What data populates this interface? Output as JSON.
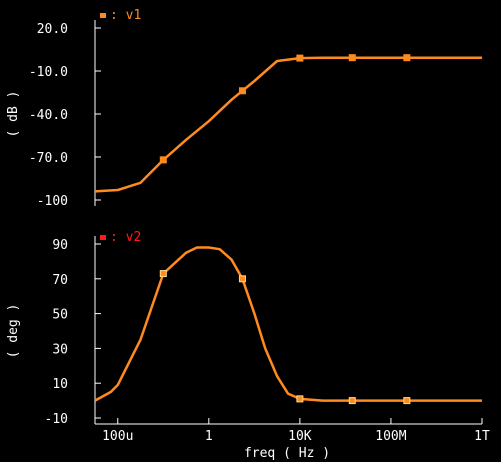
{
  "chart_data": [
    {
      "type": "line",
      "name": "magnitude-plot",
      "ylabel": "( dB )",
      "ylim": [
        -100,
        20
      ],
      "yticks": [
        "20.0",
        "-10.0",
        "-40.0",
        "-70.0",
        "-100"
      ],
      "ytick_values": [
        20,
        -10,
        -40,
        -70,
        -100
      ],
      "x_scale": "log",
      "series": [
        {
          "name": "v1",
          "color": "#ff8a1f",
          "marker_color": "#ff8a1f",
          "x": [
            1e-05,
            0.0001,
            0.001,
            0.01,
            0.1,
            1,
            10,
            100,
            1000,
            10000,
            100000,
            1000000,
            10000000,
            100000000,
            1000000000,
            10000000000,
            100000000000,
            1000000000000
          ],
          "y": [
            -94,
            -93,
            -88,
            -72,
            -58,
            -45,
            -30,
            -17,
            -3,
            -1,
            -0.7,
            -0.7,
            -0.7,
            -0.7,
            -0.7,
            -0.7,
            -0.7,
            -0.7
          ],
          "markers_x": [
            0.01,
            30,
            10000,
            2000000,
            500000000
          ]
        }
      ]
    },
    {
      "type": "line",
      "name": "phase-plot",
      "ylabel": "( deg )",
      "ylim": [
        -10,
        90
      ],
      "yticks": [
        "90",
        "70",
        "50",
        "30",
        "10",
        "-10"
      ],
      "ytick_values": [
        90,
        70,
        50,
        30,
        10,
        -10
      ],
      "x_scale": "log",
      "xlabel": "freq ( Hz )",
      "xticks": [
        "100u",
        "1",
        "10K",
        "100M",
        "1T"
      ],
      "xtick_values": [
        0.0001,
        1,
        10000,
        100000000,
        1000000000000
      ],
      "series": [
        {
          "name": "v2",
          "color": "#ff8a1f",
          "marker_color": "#ff1a1a",
          "x": [
            1e-05,
            5e-05,
            0.0001,
            0.001,
            0.01,
            0.1,
            0.3,
            1,
            3,
            10,
            30,
            100,
            300,
            1000,
            3000,
            10000,
            100000,
            1000000,
            10000000,
            100000000,
            1000000000,
            10000000000,
            100000000000,
            1000000000000
          ],
          "y": [
            0,
            5,
            9,
            35,
            73,
            85,
            88,
            88,
            87,
            81,
            70,
            50,
            30,
            14,
            4,
            1,
            0,
            0,
            0,
            0,
            0,
            0,
            0,
            0
          ],
          "markers_x": [
            0.01,
            30,
            10000,
            2000000,
            500000000
          ]
        }
      ]
    }
  ]
}
